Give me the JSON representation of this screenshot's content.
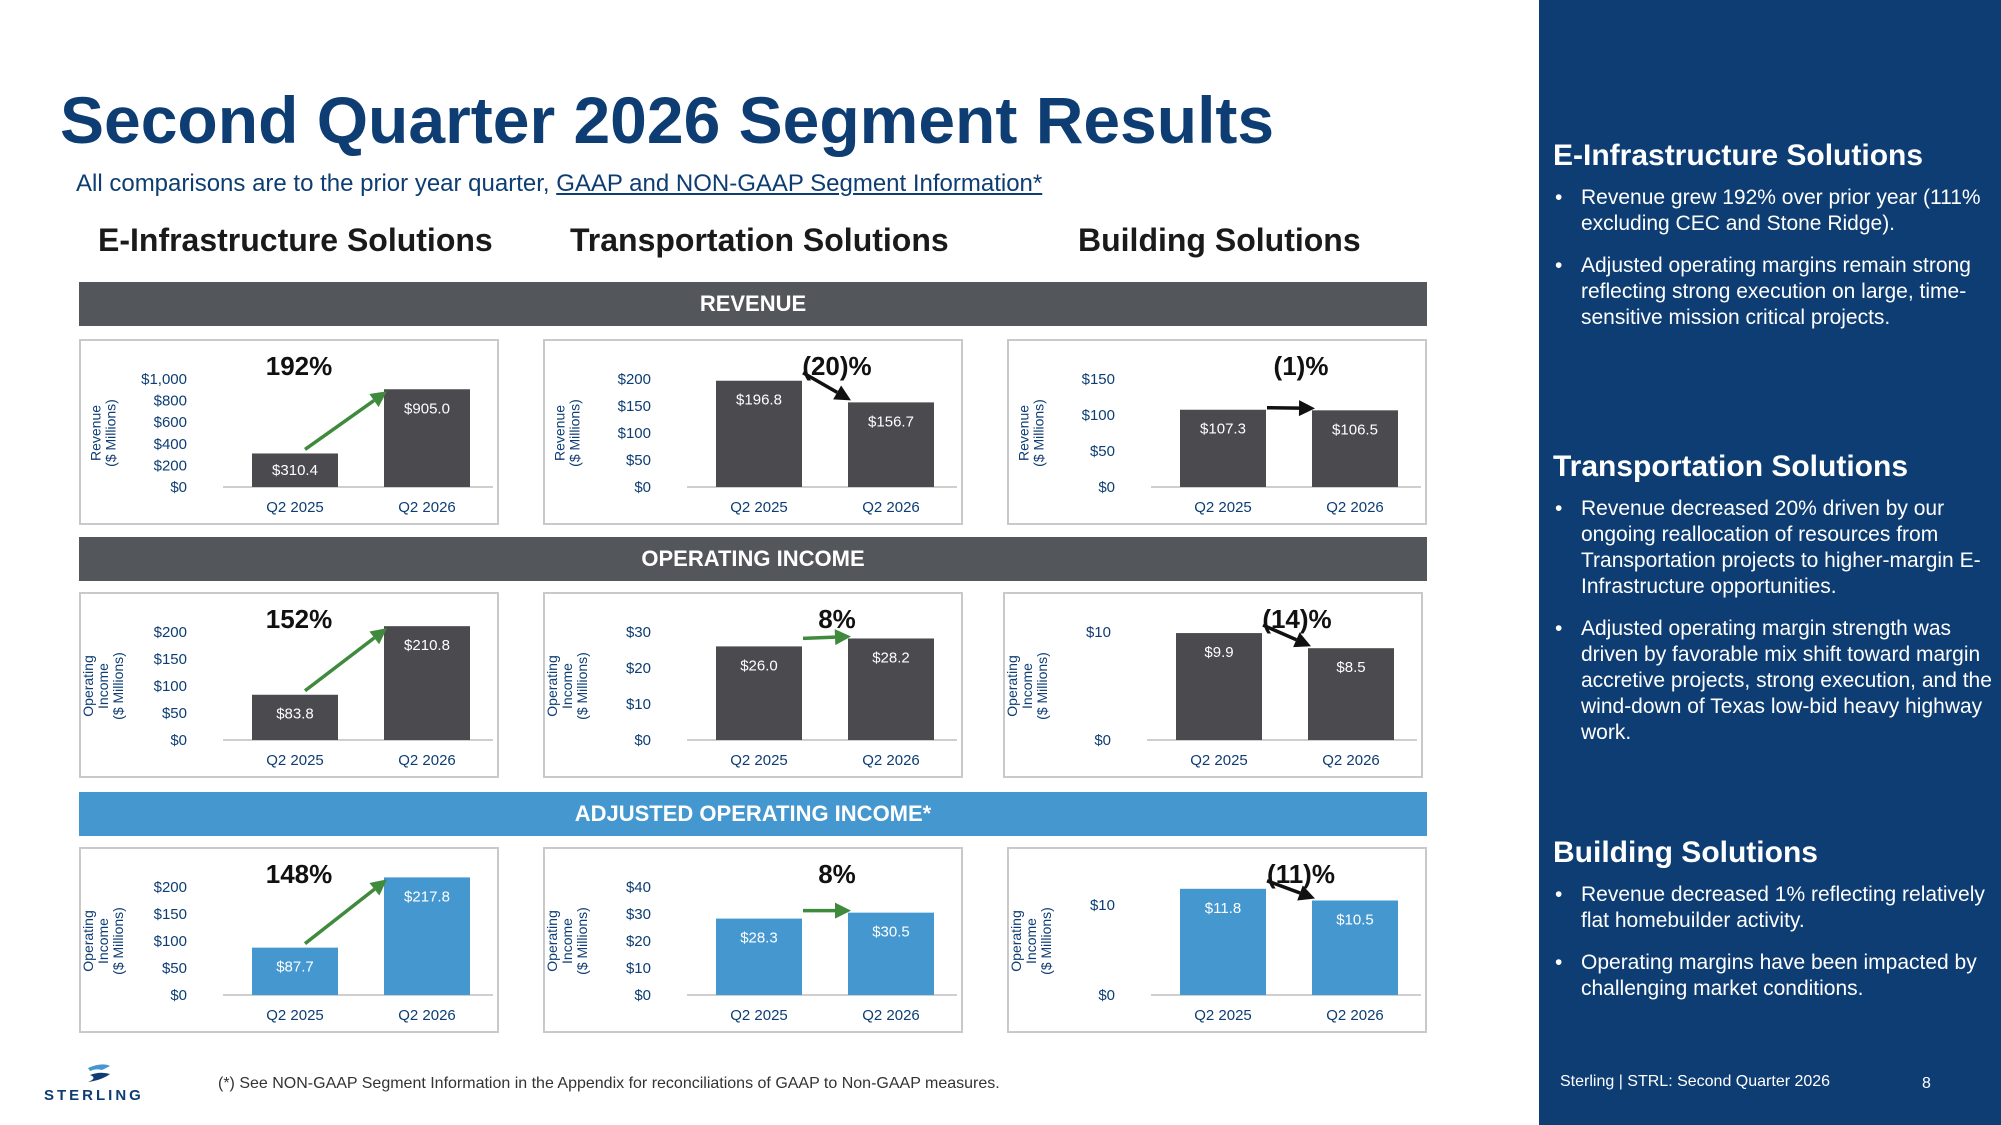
{
  "title": "Second Quarter 2026 Segment Results",
  "subtitle": {
    "prefix": "All comparisons are to the prior year quarter, ",
    "link": "GAAP and NON-GAAP Segment Information*"
  },
  "segments": [
    "E-Infrastructure Solutions",
    "Transportation Solutions",
    "Building Solutions"
  ],
  "bands": {
    "revenue": "REVENUE",
    "operating_income": "OPERATING INCOME",
    "adjusted_operating_income": "ADJUSTED OPERATING INCOME*"
  },
  "colors": {
    "brand_navy": "#0d3d73",
    "bar_dark": "#4a4a4f",
    "bar_blue": "#4597cf",
    "arrow_up": "#3f8a3c",
    "arrow_flat_down": "#111111",
    "band_dark": "#53565a",
    "band_blue": "#4597cf"
  },
  "chart_data": [
    {
      "type": "bar",
      "segment": "E-Infrastructure Solutions",
      "metric": "REVENUE",
      "change": "192%",
      "trend": "up",
      "ylabel": "Revenue ($ Millions)",
      "categories": [
        "Q2 2025",
        "Q2 2026"
      ],
      "values": [
        310.4,
        905.0
      ],
      "value_labels": [
        "$310.4",
        "$905.0"
      ],
      "yticks": [
        "$0",
        "$200",
        "$400",
        "$600",
        "$800",
        "$1,000"
      ],
      "ylim": [
        0,
        1000
      ]
    },
    {
      "type": "bar",
      "segment": "Transportation Solutions",
      "metric": "REVENUE",
      "change": "(20)%",
      "trend": "down",
      "ylabel": "Revenue ($ Millions)",
      "categories": [
        "Q2 2025",
        "Q2 2026"
      ],
      "values": [
        196.8,
        156.7
      ],
      "value_labels": [
        "$196.8",
        "$156.7"
      ],
      "yticks": [
        "$0",
        "$50",
        "$100",
        "$150",
        "$200"
      ],
      "ylim": [
        0,
        200
      ]
    },
    {
      "type": "bar",
      "segment": "Building Solutions",
      "metric": "REVENUE",
      "change": "(1)%",
      "trend": "flat",
      "ylabel": "Revenue ($ Millions)",
      "categories": [
        "Q2 2025",
        "Q2 2026"
      ],
      "values": [
        107.3,
        106.5
      ],
      "value_labels": [
        "$107.3",
        "$106.5"
      ],
      "yticks": [
        "$0",
        "$50",
        "$100",
        "$150"
      ],
      "ylim": [
        0,
        150
      ]
    },
    {
      "type": "bar",
      "segment": "E-Infrastructure Solutions",
      "metric": "OPERATING INCOME",
      "change": "152%",
      "trend": "up",
      "ylabel": "Operating Income ($ Millions)",
      "categories": [
        "Q2 2025",
        "Q2 2026"
      ],
      "values": [
        83.8,
        210.8
      ],
      "value_labels": [
        "$83.8",
        "$210.8"
      ],
      "yticks": [
        "$0",
        "$50",
        "$100",
        "$150",
        "$200"
      ],
      "ylim": [
        0,
        200
      ]
    },
    {
      "type": "bar",
      "segment": "Transportation Solutions",
      "metric": "OPERATING INCOME",
      "change": "8%",
      "trend": "up",
      "ylabel": "Operating Income ($ Millions)",
      "categories": [
        "Q2 2025",
        "Q2 2026"
      ],
      "values": [
        26.0,
        28.2
      ],
      "value_labels": [
        "$26.0",
        "$28.2"
      ],
      "yticks": [
        "$0",
        "$10",
        "$20",
        "$30"
      ],
      "ylim": [
        0,
        30
      ]
    },
    {
      "type": "bar",
      "segment": "Building Solutions",
      "metric": "OPERATING INCOME",
      "change": "(14)%",
      "trend": "down",
      "ylabel": "Operating Income ($ Millions)",
      "categories": [
        "Q2 2025",
        "Q2 2026"
      ],
      "values": [
        9.9,
        8.5
      ],
      "value_labels": [
        "$9.9",
        "$8.5"
      ],
      "yticks": [
        "$0",
        "$10"
      ],
      "ylim": [
        0,
        10
      ]
    },
    {
      "type": "bar",
      "segment": "E-Infrastructure Solutions",
      "metric": "ADJUSTED OPERATING INCOME*",
      "change": "148%",
      "trend": "up",
      "ylabel": "Operating Income ($ Millions)",
      "categories": [
        "Q2 2025",
        "Q2 2026"
      ],
      "values": [
        87.7,
        217.8
      ],
      "value_labels": [
        "$87.7",
        "$217.8"
      ],
      "yticks": [
        "$0",
        "$50",
        "$100",
        "$150",
        "$200"
      ],
      "ylim": [
        0,
        200
      ]
    },
    {
      "type": "bar",
      "segment": "Transportation Solutions",
      "metric": "ADJUSTED OPERATING INCOME*",
      "change": "8%",
      "trend": "up",
      "ylabel": "Operating Income ($ Millions)",
      "categories": [
        "Q2 2025",
        "Q2 2026"
      ],
      "values": [
        28.3,
        30.5
      ],
      "value_labels": [
        "$28.3",
        "$30.5"
      ],
      "yticks": [
        "$0",
        "$10",
        "$20",
        "$30",
        "$40"
      ],
      "ylim": [
        0,
        40
      ]
    },
    {
      "type": "bar",
      "segment": "Building Solutions",
      "metric": "ADJUSTED OPERATING INCOME*",
      "change": "(11)%",
      "trend": "down",
      "ylabel": "Operating Income ($ Millions)",
      "categories": [
        "Q2 2025",
        "Q2 2026"
      ],
      "values": [
        11.8,
        10.5
      ],
      "value_labels": [
        "$11.8",
        "$10.5"
      ],
      "yticks": [
        "$0",
        "$10"
      ],
      "ylim": [
        0,
        12
      ]
    }
  ],
  "sidebar": {
    "sections": [
      {
        "title": "E-Infrastructure Solutions",
        "bullets": [
          "Revenue grew 192% over prior year (111% excluding CEC and Stone Ridge).",
          "Adjusted operating margins remain strong reflecting strong execution on large, time-sensitive mission critical projects."
        ]
      },
      {
        "title": "Transportation Solutions",
        "bullets": [
          "Revenue decreased 20% driven by our ongoing reallocation of resources from Transportation projects to higher-margin E-Infrastructure opportunities.",
          "Adjusted operating margin strength was driven by favorable mix shift toward margin accretive projects, strong execution, and the wind-down of Texas low-bid heavy highway work."
        ]
      },
      {
        "title": "Building Solutions",
        "bullets": [
          "Revenue decreased 1% reflecting relatively flat homebuilder activity.",
          "Operating margins have been impacted by challenging market conditions."
        ]
      }
    ],
    "footer": "Sterling | STRL:  Second Quarter 2026",
    "page_number": "8"
  },
  "footnote": "(*) See NON-GAAP Segment Information in the Appendix for reconciliations of GAAP to Non-GAAP measures.",
  "logo_text": "STERLING"
}
